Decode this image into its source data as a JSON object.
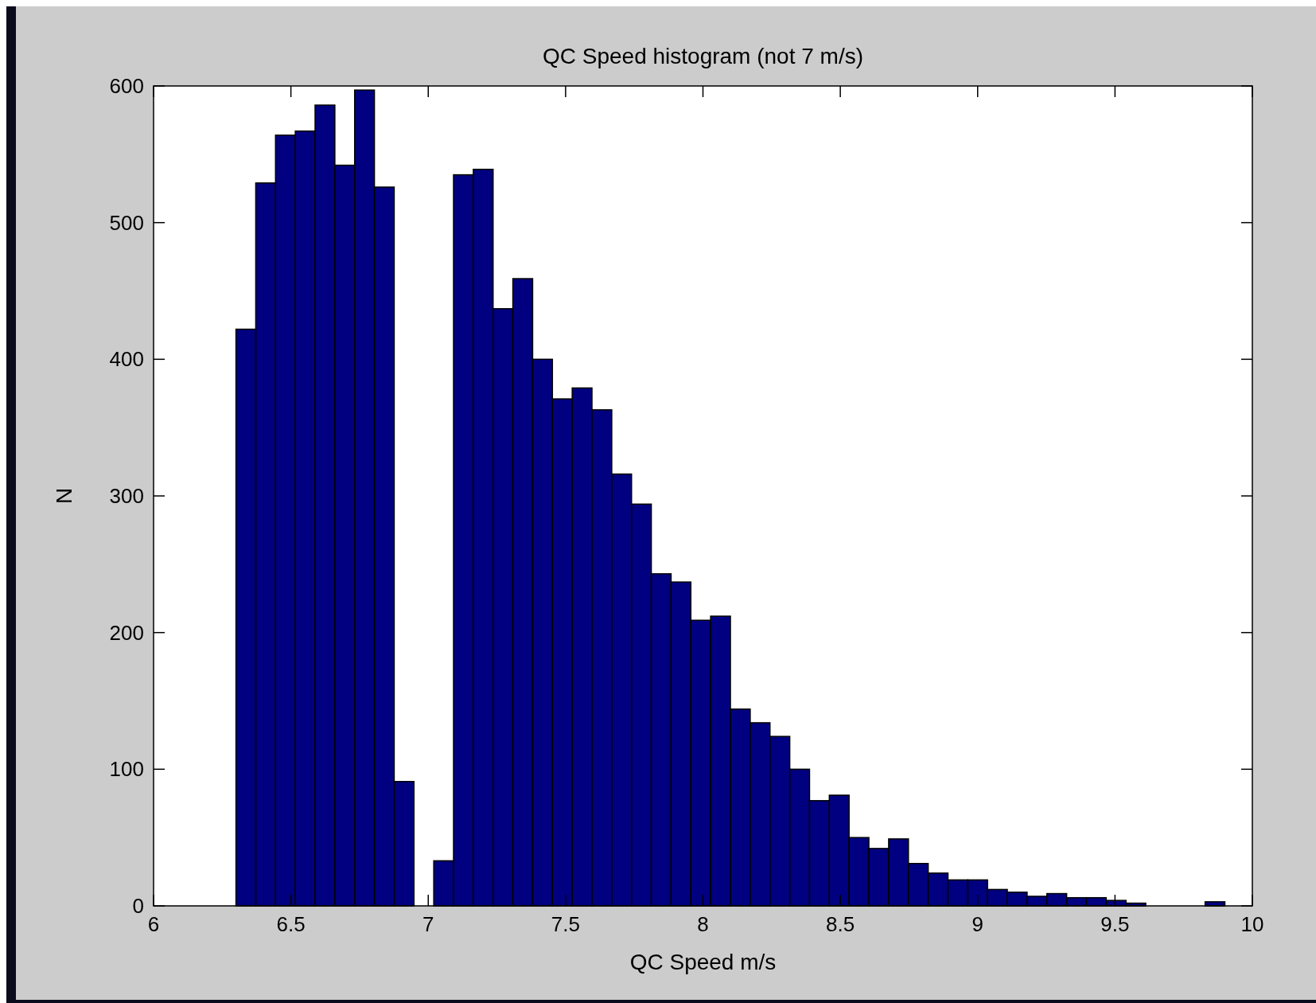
{
  "chart_data": {
    "type": "histogram",
    "title": "QC Speed histogram (not 7 m/s)",
    "xlabel": "QC Speed m/s",
    "ylabel": "N",
    "color": "#000080",
    "bins": [
      6.3,
      6.372,
      6.444,
      6.516,
      6.588,
      6.66,
      6.732,
      6.804,
      6.876,
      6.948,
      7.02,
      7.092,
      7.164,
      7.236,
      7.308,
      7.38,
      7.452,
      7.524,
      7.596,
      7.668,
      7.74,
      7.812,
      7.884,
      7.956,
      8.028,
      8.1,
      8.172,
      8.244,
      8.316,
      8.388,
      8.46,
      8.532,
      8.604,
      8.676,
      8.748,
      8.82,
      8.892,
      8.964,
      9.036,
      9.108,
      9.18,
      9.252,
      9.324,
      9.396,
      9.468,
      9.54,
      9.612,
      9.684,
      9.756,
      9.828,
      9.9
    ],
    "values": [
      422,
      529,
      564,
      567,
      586,
      542,
      597,
      526,
      91,
      0,
      33,
      535,
      539,
      437,
      459,
      400,
      371,
      379,
      363,
      316,
      294,
      243,
      237,
      209,
      212,
      144,
      134,
      124,
      100,
      77,
      81,
      50,
      42,
      49,
      31,
      24,
      19,
      19,
      12,
      10,
      7,
      9,
      6,
      6,
      4,
      2,
      0,
      0,
      0,
      3
    ],
    "xlim": [
      6,
      10
    ],
    "xticks": [
      6,
      6.5,
      7,
      7.5,
      8,
      8.5,
      9,
      9.5,
      10
    ],
    "ylim": [
      0,
      600
    ],
    "yticks": [
      0,
      100,
      200,
      300,
      400,
      500,
      600
    ],
    "grid": false
  }
}
